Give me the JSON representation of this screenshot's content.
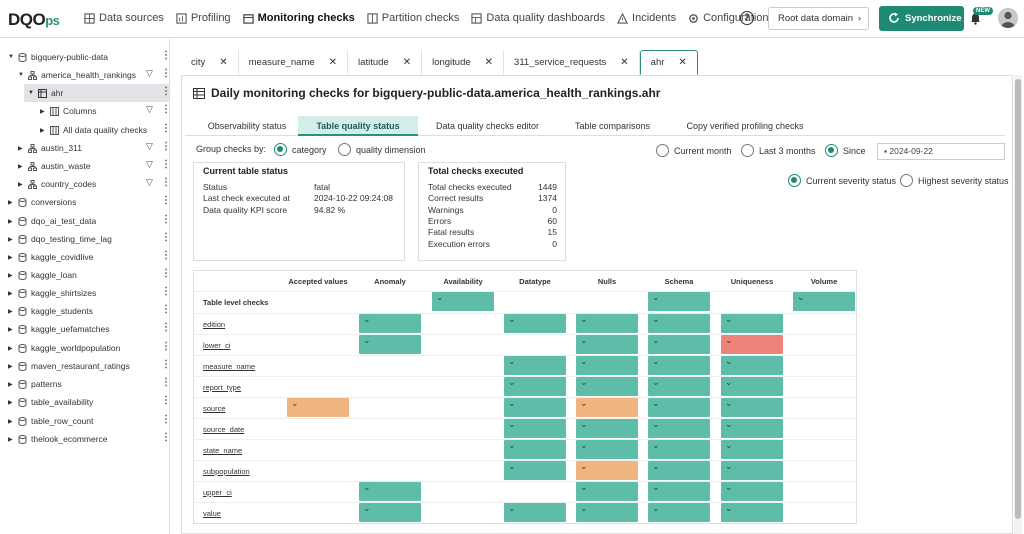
{
  "brand": {
    "logo_main": "DQO",
    "logo_suffix": "ps"
  },
  "nav": [
    {
      "label": "Data sources",
      "icon": "database-icon"
    },
    {
      "label": "Profiling",
      "icon": "chart-icon"
    },
    {
      "label": "Monitoring checks",
      "icon": "calendar-icon"
    },
    {
      "label": "Partition checks",
      "icon": "partition-icon"
    },
    {
      "label": "Data quality dashboards",
      "icon": "dashboard-icon"
    },
    {
      "label": "Incidents",
      "icon": "warning-icon"
    },
    {
      "label": "Configuration",
      "icon": "gear-icon"
    }
  ],
  "header": {
    "help": "?",
    "domain": "Root data domain",
    "sync": "Synchronize",
    "new_badge": "NEW"
  },
  "tree": [
    {
      "label": "bigquery-public-data",
      "level": 0,
      "expanded": true
    },
    {
      "label": "america_health_rankings",
      "level": 1,
      "expanded": true,
      "funnel": true
    },
    {
      "label": "ahr",
      "level": 2,
      "expanded": true,
      "selected": true
    },
    {
      "label": "Columns",
      "level": 3,
      "funnel": true
    },
    {
      "label": "All data quality checks",
      "level": 3
    },
    {
      "label": "austin_311",
      "level": 1,
      "funnel": true
    },
    {
      "label": "austin_waste",
      "level": 1,
      "funnel": true
    },
    {
      "label": "country_codes",
      "level": 1,
      "funnel": true
    },
    {
      "label": "conversions",
      "level": 0
    },
    {
      "label": "dqo_ai_test_data",
      "level": 0
    },
    {
      "label": "dqo_testing_time_lag",
      "level": 0
    },
    {
      "label": "kaggle_covidlive",
      "level": 0
    },
    {
      "label": "kaggle_loan",
      "level": 0
    },
    {
      "label": "kaggle_shirtsizes",
      "level": 0
    },
    {
      "label": "kaggle_students",
      "level": 0
    },
    {
      "label": "kaggle_uefamatches",
      "level": 0
    },
    {
      "label": "kaggle_worldpopulation",
      "level": 0
    },
    {
      "label": "maven_restaurant_ratings",
      "level": 0
    },
    {
      "label": "patterns",
      "level": 0
    },
    {
      "label": "table_availability",
      "level": 0
    },
    {
      "label": "table_row_count",
      "level": 0
    },
    {
      "label": "thelook_ecommerce",
      "level": 0
    }
  ],
  "tabs": [
    "city",
    "measure_name",
    "latitude",
    "longitude",
    "311_service_requests",
    "ahr"
  ],
  "page": {
    "title": "Daily monitoring checks for bigquery-public-data.america_health_rankings.ahr"
  },
  "subtabs": [
    "Observability status",
    "Table quality status",
    "Data quality checks editor",
    "Table comparisons",
    "Copy verified profiling checks"
  ],
  "group_by": {
    "label": "Group checks by:",
    "options": [
      "category",
      "quality dimension"
    ],
    "selected": "category"
  },
  "period": {
    "options": [
      "Current month",
      "Last 3 months",
      "Since"
    ],
    "selected": "Since",
    "date": "2024-09-22"
  },
  "severity": {
    "options": [
      "Current severity status",
      "Highest severity status"
    ],
    "selected": "Current severity status"
  },
  "current_status": {
    "title": "Current table status",
    "rows": [
      [
        "Status",
        "fatal"
      ],
      [
        "Last check executed at",
        "2024-10-22 09:24:08"
      ],
      [
        "Data quality KPI score",
        "94.82 %"
      ]
    ]
  },
  "totals": {
    "title": "Total checks executed",
    "rows": [
      [
        "Total checks executed",
        "1449"
      ],
      [
        "Correct results",
        "1374"
      ],
      [
        "Warnings",
        "0"
      ],
      [
        "Errors",
        "60"
      ],
      [
        "Fatal results",
        "15"
      ],
      [
        "Execution errors",
        "0"
      ]
    ]
  },
  "grid": {
    "columns": [
      "Accepted values",
      "Anomaly",
      "Availability",
      "Datatype",
      "Nulls",
      "Schema",
      "Uniqueness",
      "Volume"
    ],
    "rows": [
      {
        "label": "Table level checks",
        "cells": [
          "",
          "",
          "g",
          "",
          "",
          "g",
          "",
          "g"
        ]
      },
      {
        "label": "edition",
        "cells": [
          "",
          "g",
          "",
          "g",
          "g",
          "g",
          "g",
          ""
        ]
      },
      {
        "label": "lower_ci",
        "cells": [
          "",
          "g",
          "",
          "",
          "g",
          "g",
          "r",
          ""
        ]
      },
      {
        "label": "measure_name",
        "cells": [
          "",
          "",
          "",
          "g",
          "g",
          "g",
          "g",
          ""
        ]
      },
      {
        "label": "report_type",
        "cells": [
          "",
          "",
          "",
          "g",
          "g",
          "g",
          "g",
          ""
        ]
      },
      {
        "label": "source",
        "cells": [
          "o",
          "",
          "",
          "g",
          "o",
          "g",
          "g",
          ""
        ]
      },
      {
        "label": "source_date",
        "cells": [
          "",
          "",
          "",
          "g",
          "g",
          "g",
          "g",
          ""
        ]
      },
      {
        "label": "state_name",
        "cells": [
          "",
          "",
          "",
          "g",
          "g",
          "g",
          "g",
          ""
        ]
      },
      {
        "label": "subpopulation",
        "cells": [
          "",
          "",
          "",
          "g",
          "o",
          "g",
          "g",
          ""
        ]
      },
      {
        "label": "upper_ci",
        "cells": [
          "",
          "g",
          "",
          "",
          "g",
          "g",
          "g",
          ""
        ]
      },
      {
        "label": "value",
        "cells": [
          "",
          "g",
          "",
          "g",
          "g",
          "g",
          "g",
          ""
        ]
      }
    ],
    "colors": {
      "g": "#5dbda8",
      "o": "#f0b47e",
      "r": "#ef8279"
    }
  }
}
